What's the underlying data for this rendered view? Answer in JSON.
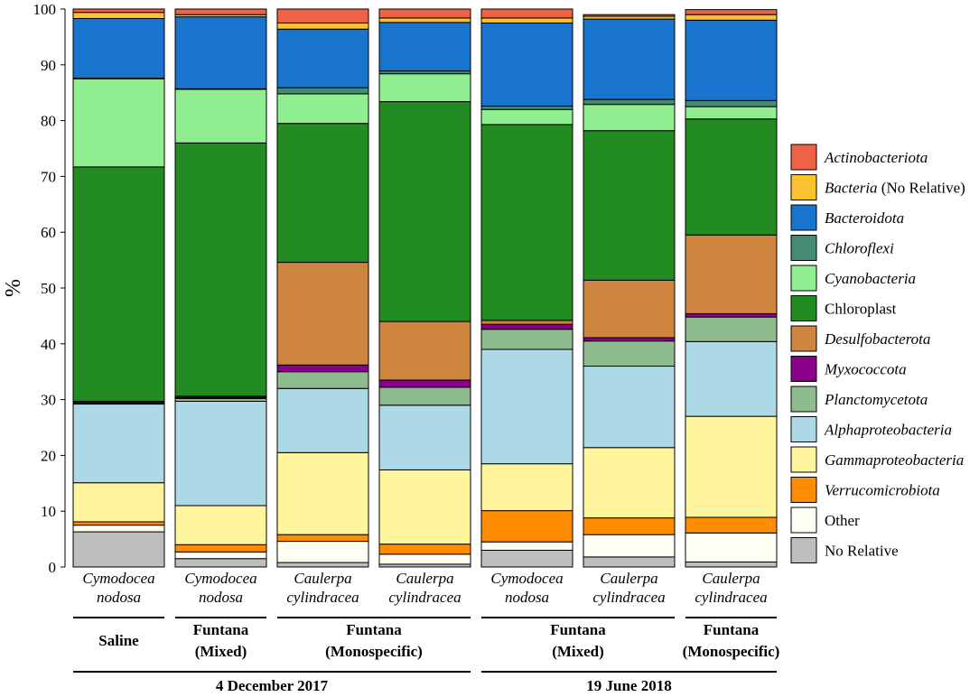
{
  "chart_data": {
    "type": "bar",
    "stacked": true,
    "ylabel": "%",
    "ylim": [
      0,
      100
    ],
    "yticks": [
      0,
      10,
      20,
      30,
      40,
      50,
      60,
      70,
      80,
      90,
      100
    ],
    "categories": [
      {
        "line1": "Cymodocea",
        "line2": "nodosa"
      },
      {
        "line1": "Cymodocea",
        "line2": "nodosa"
      },
      {
        "line1": "Caulerpa",
        "line2": "cylindracea"
      },
      {
        "line1": "Caulerpa",
        "line2": "cylindracea"
      },
      {
        "line1": "Cymodocea",
        "line2": "nodosa"
      },
      {
        "line1": "Caulerpa",
        "line2": "cylindracea"
      },
      {
        "line1": "Caulerpa",
        "line2": "cylindracea"
      }
    ],
    "groups": [
      {
        "line1": "Saline",
        "line2": "",
        "start": 0,
        "end": 0
      },
      {
        "line1": "Funtana",
        "line2": "(Mixed)",
        "start": 1,
        "end": 1
      },
      {
        "line1": "Funtana",
        "line2": "(Monospecific)",
        "start": 2,
        "end": 3
      },
      {
        "line1": "Funtana",
        "line2": "(Mixed)",
        "start": 4,
        "end": 5
      },
      {
        "line1": "Funtana",
        "line2": "(Monospecific)",
        "start": 6,
        "end": 6
      }
    ],
    "dates": [
      {
        "label": "4 December 2017",
        "start": 0,
        "end": 3
      },
      {
        "label": "19 June 2018",
        "start": 4,
        "end": 6
      }
    ],
    "series": [
      {
        "name": "No Relative",
        "color": "#bebebe",
        "italic": false,
        "values": [
          6.3,
          1.5,
          0.8,
          0.5,
          3.0,
          1.8,
          0.9
        ]
      },
      {
        "name": "Other",
        "color": "#fefef2",
        "italic": false,
        "values": [
          1.2,
          1.2,
          3.8,
          1.8,
          1.5,
          4.0,
          5.2
        ]
      },
      {
        "name": "Verrucomicrobiota",
        "color": "#ff8c00",
        "italic": true,
        "values": [
          0.6,
          1.3,
          1.2,
          1.8,
          5.6,
          3.0,
          2.8
        ]
      },
      {
        "name": "Gammaproteobacteria",
        "color": "#fff59d",
        "italic": true,
        "values": [
          7.0,
          7.0,
          14.7,
          13.3,
          8.4,
          12.6,
          18.1
        ]
      },
      {
        "name": "Alphaproteobacteria",
        "color": "#add8e6",
        "italic": true,
        "values": [
          14.1,
          18.7,
          11.5,
          11.6,
          20.5,
          14.6,
          13.4
        ]
      },
      {
        "name": "Planctomycetota",
        "color": "#8fbc8f",
        "italic": true,
        "values": [
          0.2,
          0.5,
          3.0,
          3.2,
          3.6,
          4.5,
          4.4
        ]
      },
      {
        "name": "Myxococcota",
        "color": "#8b008b",
        "italic": true,
        "values": [
          0.1,
          0.2,
          1.2,
          1.3,
          0.9,
          0.6,
          0.6
        ]
      },
      {
        "name": "Desulfobacterota",
        "color": "#cd853f",
        "italic": true,
        "values": [
          0.2,
          0.2,
          18.4,
          10.5,
          0.7,
          10.3,
          14.1
        ]
      },
      {
        "name": "Chloroplast",
        "color": "#228b22",
        "italic": false,
        "values": [
          42.0,
          45.4,
          24.9,
          39.4,
          35.1,
          26.8,
          20.8
        ]
      },
      {
        "name": "Cyanobacteria",
        "color": "#90ee90",
        "italic": true,
        "values": [
          15.8,
          9.6,
          5.3,
          5.0,
          2.7,
          4.7,
          2.2
        ]
      },
      {
        "name": "Chloroflexi",
        "color": "#458b74",
        "italic": true,
        "values": [
          0.1,
          0.1,
          1.1,
          0.5,
          0.6,
          0.9,
          1.1
        ]
      },
      {
        "name": "Bacteroidota",
        "color": "#1874cd",
        "italic": true,
        "values": [
          10.7,
          12.9,
          10.5,
          8.7,
          14.9,
          14.4,
          14.4
        ]
      },
      {
        "name": "Bacteria (No Relative)",
        "color": "#fcc12f",
        "italic": true,
        "italicPart": "Bacteria",
        "plainPart": " (No Relative)",
        "values": [
          1.1,
          0.4,
          1.1,
          0.8,
          0.9,
          0.5,
          1.0
        ]
      },
      {
        "name": "Actinobacteriota",
        "color": "#ee6347",
        "italic": true,
        "values": [
          0.6,
          1.0,
          2.5,
          1.6,
          1.6,
          0.3,
          0.9
        ]
      }
    ],
    "legend": {
      "placement": "right",
      "order": [
        "Actinobacteriota",
        "Bacteria (No Relative)",
        "Bacteroidota",
        "Chloroflexi",
        "Cyanobacteria",
        "Chloroplast",
        "Desulfobacterota",
        "Myxococcota",
        "Planctomycetota",
        "Alphaproteobacteria",
        "Gammaproteobacteria",
        "Verrucomicrobiota",
        "Other",
        "No Relative"
      ]
    }
  }
}
